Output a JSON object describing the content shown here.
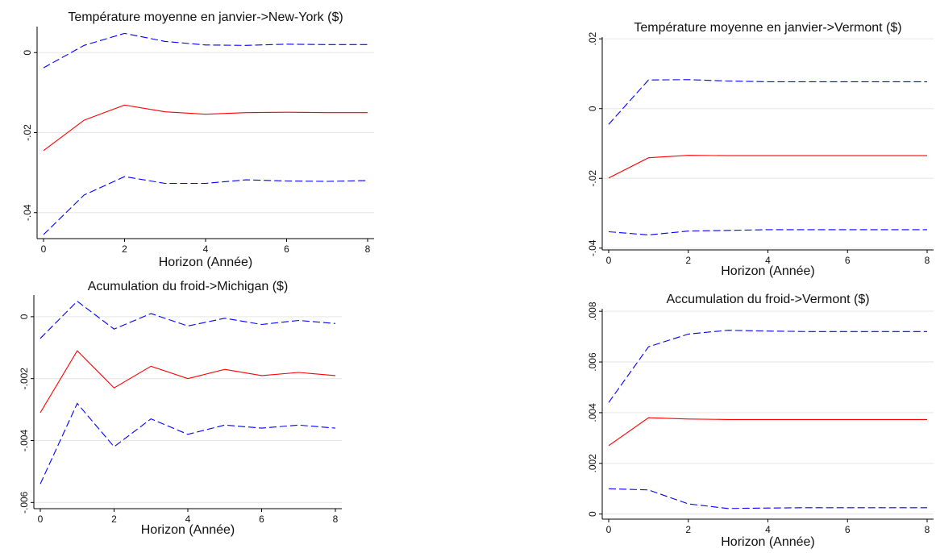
{
  "chart_data": [
    {
      "type": "line",
      "title": "Température moyenne en janvier->New-York ($)",
      "xlabel": "Horizon (Année)",
      "ylabel": "",
      "xlim": [
        0,
        8
      ],
      "ylim": [
        -0.0465,
        0.0065
      ],
      "x": [
        0,
        1,
        2,
        3,
        4,
        5,
        6,
        7,
        8
      ],
      "xticks": [
        0,
        2,
        4,
        6,
        8
      ],
      "xtick_labels": [
        "0",
        "2",
        "4",
        "6",
        "8"
      ],
      "yticks": [
        0,
        -0.02,
        -0.04
      ],
      "ytick_labels": [
        "0",
        "-.02",
        "-.04"
      ],
      "grid": true,
      "series": [
        {
          "role": "upper",
          "color": "#0000ff",
          "dash": true,
          "values": [
            -0.0038,
            0.0018,
            0.0048,
            0.0028,
            0.0019,
            0.0018,
            0.0021,
            0.002,
            0.002
          ]
        },
        {
          "role": "irf",
          "color": "#ff0000",
          "dash": false,
          "values": [
            -0.0245,
            -0.0169,
            -0.0131,
            -0.0148,
            -0.0154,
            -0.015,
            -0.0149,
            -0.015,
            -0.015
          ]
        },
        {
          "role": "lower",
          "color": "#0000ff",
          "dash": true,
          "values": [
            -0.0455,
            -0.0356,
            -0.031,
            -0.0327,
            -0.0327,
            -0.0318,
            -0.0321,
            -0.0322,
            -0.032
          ]
        }
      ]
    },
    {
      "type": "line",
      "title": "Température moyenne en janvier->Vermont ($)",
      "xlabel": "Horizon (Année)",
      "ylabel": "",
      "xlim": [
        0,
        8
      ],
      "ylim": [
        -0.0405,
        0.0205
      ],
      "x": [
        0,
        1,
        2,
        3,
        4,
        5,
        6,
        7,
        8
      ],
      "xticks": [
        0,
        2,
        4,
        6,
        8
      ],
      "xtick_labels": [
        "0",
        "2",
        "4",
        "6",
        "8"
      ],
      "yticks": [
        0.02,
        0,
        -0.02,
        -0.04
      ],
      "ytick_labels": [
        ".02",
        "0",
        "-.02",
        "-.04"
      ],
      "grid": true,
      "series": [
        {
          "role": "upper",
          "color": "#0000ff",
          "dash": true,
          "values": [
            -0.0045,
            0.0082,
            0.0083,
            0.0079,
            0.0077,
            0.0077,
            0.0077,
            0.0077,
            0.0077
          ]
        },
        {
          "role": "irf",
          "color": "#ff0000",
          "dash": false,
          "values": [
            -0.0199,
            -0.0141,
            -0.0134,
            -0.0135,
            -0.0135,
            -0.0135,
            -0.0135,
            -0.0135,
            -0.0135
          ]
        },
        {
          "role": "lower",
          "color": "#0000ff",
          "dash": true,
          "values": [
            -0.0353,
            -0.0362,
            -0.0351,
            -0.0349,
            -0.0347,
            -0.0347,
            -0.0347,
            -0.0347,
            -0.0347
          ]
        }
      ]
    },
    {
      "type": "line",
      "title": "Acumulation du froid->Michigan ($)",
      "xlabel": "Horizon (Année)",
      "ylabel": "",
      "xlim": [
        0,
        8
      ],
      "ylim": [
        -0.0062,
        0.0007
      ],
      "x": [
        0,
        1,
        2,
        3,
        4,
        5,
        6,
        7,
        8
      ],
      "xticks": [
        0,
        2,
        4,
        6,
        8
      ],
      "xtick_labels": [
        "0",
        "2",
        "4",
        "6",
        "8"
      ],
      "yticks": [
        0,
        -0.002,
        -0.004,
        -0.006
      ],
      "ytick_labels": [
        "0",
        "-.002",
        "-.004",
        "-.006"
      ],
      "grid": true,
      "series": [
        {
          "role": "upper",
          "color": "#0000ff",
          "dash": true,
          "values": [
            -0.0007,
            0.0005,
            -0.0004,
            0.0001,
            -0.0003,
            -5e-05,
            -0.00025,
            -0.00012,
            -0.00022
          ]
        },
        {
          "role": "irf",
          "color": "#ff0000",
          "dash": false,
          "values": [
            -0.0031,
            -0.0011,
            -0.0023,
            -0.0016,
            -0.002,
            -0.0017,
            -0.0019,
            -0.0018,
            -0.0019
          ]
        },
        {
          "role": "lower",
          "color": "#0000ff",
          "dash": true,
          "values": [
            -0.0054,
            -0.0028,
            -0.0042,
            -0.0033,
            -0.0038,
            -0.0035,
            -0.0036,
            -0.0035,
            -0.0036
          ]
        }
      ]
    },
    {
      "type": "line",
      "title": "Accumulation du froid->Vermont ($)",
      "xlabel": "Horizon (Année)",
      "ylabel": "",
      "xlim": [
        0,
        8
      ],
      "ylim": [
        -0.0002,
        0.0081
      ],
      "x": [
        0,
        1,
        2,
        3,
        4,
        5,
        6,
        7,
        8
      ],
      "xticks": [
        0,
        2,
        4,
        6,
        8
      ],
      "xtick_labels": [
        "0",
        "2",
        "4",
        "6",
        "8"
      ],
      "yticks": [
        0.008,
        0.006,
        0.004,
        0.002,
        0
      ],
      "ytick_labels": [
        ".008",
        ".006",
        ".004",
        ".002",
        "0"
      ],
      "grid": true,
      "series": [
        {
          "role": "upper",
          "color": "#0000ff",
          "dash": true,
          "values": [
            0.0044,
            0.0066,
            0.0071,
            0.00725,
            0.00722,
            0.0072,
            0.0072,
            0.0072,
            0.0072
          ]
        },
        {
          "role": "irf",
          "color": "#ff0000",
          "dash": false,
          "values": [
            0.0027,
            0.0038,
            0.00375,
            0.00373,
            0.00373,
            0.00373,
            0.00373,
            0.00373,
            0.00373
          ]
        },
        {
          "role": "lower",
          "color": "#0000ff",
          "dash": true,
          "values": [
            0.001,
            0.00095,
            0.0004,
            0.00022,
            0.00024,
            0.00025,
            0.00025,
            0.00025,
            0.00025
          ]
        }
      ]
    }
  ]
}
